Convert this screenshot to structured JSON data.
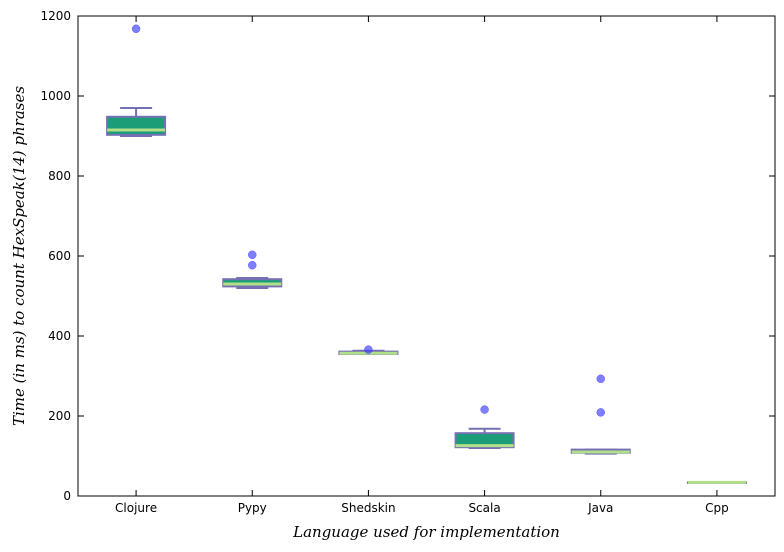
{
  "chart_data": {
    "type": "box",
    "xlabel": "Language used for implementation",
    "ylabel": "Time (in ms) to count HexSpeak(14) phrases",
    "ylim": [
      0,
      1200
    ],
    "yticks": [
      0,
      200,
      400,
      600,
      800,
      1000,
      1200
    ],
    "grid": false,
    "categories": [
      "Clojure",
      "Pypy",
      "Shedskin",
      "Scala",
      "Java",
      "Cpp"
    ],
    "boxes": [
      {
        "name": "Clojure",
        "whisker_low": 900,
        "q1": 903,
        "median": 915,
        "q3": 948,
        "whisker_high": 970,
        "outliers": [
          1168
        ]
      },
      {
        "name": "Pypy",
        "whisker_low": 520,
        "q1": 524,
        "median": 530,
        "q3": 542,
        "whisker_high": 545,
        "outliers": [
          603,
          577
        ]
      },
      {
        "name": "Shedskin",
        "whisker_low": 355,
        "q1": 355,
        "median": 357,
        "q3": 361,
        "whisker_high": 363,
        "outliers": [
          366
        ]
      },
      {
        "name": "Scala",
        "whisker_low": 120,
        "q1": 122,
        "median": 126,
        "q3": 157,
        "whisker_high": 168,
        "outliers": [
          216
        ]
      },
      {
        "name": "Java",
        "whisker_low": 106,
        "q1": 108,
        "median": 110,
        "q3": 116,
        "whisker_high": 116,
        "outliers": [
          293,
          209
        ]
      },
      {
        "name": "Cpp",
        "whisker_low": 34,
        "q1": 34,
        "median": 34,
        "q3": 34,
        "whisker_high": 34,
        "outliers": []
      }
    ],
    "colors": {
      "box_edge": "#7570b3",
      "box_fill": "#1b9e77",
      "median": "#b2df8a",
      "whisker": "#7570b3",
      "outlier": "#3b3bff"
    }
  }
}
